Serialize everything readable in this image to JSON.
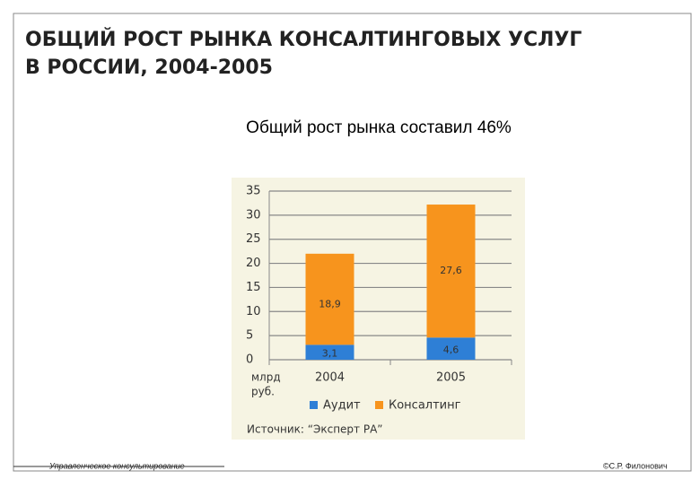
{
  "title_lines": [
    "ОБЩИЙ РОСТ РЫНКА КОНСАЛТИНГОВЫХ УСЛУГ",
    "В РОССИИ, 2004-2005"
  ],
  "subtitle": "Общий рост рынка составил 46%",
  "chart_data": {
    "type": "bar",
    "stacked": true,
    "categories": [
      "2004",
      "2005"
    ],
    "series": [
      {
        "name": "Аудит",
        "color": "#2e7fd6",
        "values": [
          3.1,
          4.6
        ],
        "value_labels": [
          "3,1",
          "4,6"
        ]
      },
      {
        "name": "Консалтинг",
        "color": "#f7941d",
        "values": [
          18.9,
          27.6
        ],
        "value_labels": [
          "18,9",
          "27,6"
        ]
      }
    ],
    "ylim": [
      0,
      35
    ],
    "yticks": [
      0,
      5,
      10,
      15,
      20,
      25,
      30,
      35
    ],
    "grid": true,
    "y_label_lines": [
      "млрд",
      "руб."
    ],
    "note": "Источник: “Эксперт РА”"
  },
  "footer": {
    "left": "Управленческое консультирование",
    "right": "©С.Р. Филонович"
  }
}
